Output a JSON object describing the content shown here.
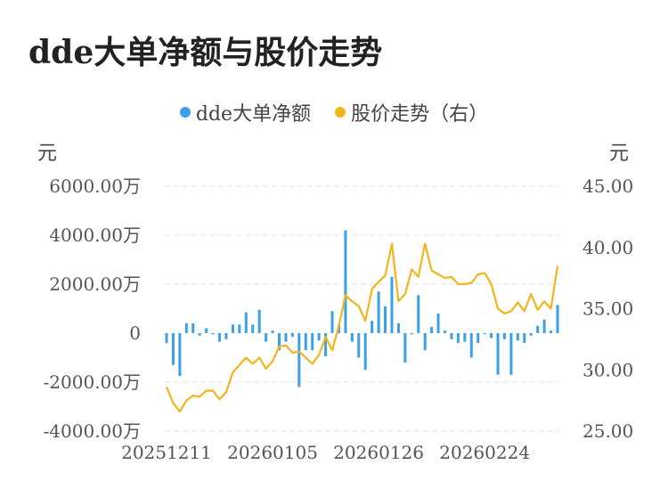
{
  "title": "dde大单净额与股价走势",
  "legend": {
    "series1": "dde大单净额",
    "series2": "股价走势（右）"
  },
  "units": {
    "left": "元",
    "right": "元"
  },
  "colors": {
    "bar": "#3aa0e8",
    "line": "#f4b41a",
    "grid": "#e3e3e3",
    "axis_text": "#555555"
  },
  "chart_data": {
    "type": "bar+line",
    "x_tick_labels": [
      "20251211",
      "20260105",
      "20260126",
      "20260224"
    ],
    "x_tick_indices": [
      0,
      16,
      32,
      48
    ],
    "y_left": {
      "min": -4000,
      "max": 6000,
      "ticks": [
        6000,
        4000,
        2000,
        0,
        -2000,
        -4000
      ],
      "tick_labels": [
        "6000.00万",
        "4000.00万",
        "2000.00万",
        "0",
        "-2000.00万",
        "-4000.00万"
      ]
    },
    "y_right": {
      "min": 25,
      "max": 45,
      "ticks": [
        45,
        40,
        35,
        30,
        25
      ],
      "tick_labels": [
        "45.00",
        "40.00",
        "35.00",
        "30.00",
        "25.00"
      ]
    },
    "series": [
      {
        "name": "dde大单净额",
        "kind": "bar",
        "unit": "万",
        "values": [
          -400,
          -1300,
          -1750,
          400,
          400,
          -100,
          200,
          -50,
          -350,
          -250,
          350,
          350,
          850,
          350,
          950,
          -350,
          100,
          -700,
          -350,
          -150,
          -2200,
          -700,
          -700,
          -300,
          -950,
          900,
          350,
          4200,
          -350,
          -1000,
          -1500,
          500,
          1700,
          1100,
          2300,
          400,
          -1200,
          -50,
          1550,
          -700,
          250,
          800,
          100,
          -250,
          -400,
          -350,
          -1000,
          -400,
          -50,
          -200,
          -1700,
          -250,
          -1700,
          -300,
          -400,
          -100,
          300,
          550,
          100,
          1150
        ]
      },
      {
        "name": "股价走势（右）",
        "kind": "line",
        "values": [
          28.6,
          27.3,
          26.6,
          27.5,
          27.9,
          27.8,
          28.3,
          28.3,
          27.6,
          28.2,
          29.8,
          30.4,
          31.0,
          30.5,
          31.0,
          30.1,
          30.7,
          31.9,
          32.0,
          31.4,
          31.5,
          31.0,
          30.5,
          31.2,
          32.7,
          31.6,
          33.6,
          36.1,
          35.6,
          35.2,
          34.0,
          36.6,
          37.2,
          37.7,
          40.3,
          35.6,
          36.2,
          38.2,
          37.6,
          40.3,
          38.1,
          37.8,
          37.5,
          37.6,
          37.0,
          37.0,
          37.1,
          37.8,
          37.9,
          37.0,
          35.0,
          34.6,
          34.8,
          35.5,
          34.8,
          36.2,
          34.9,
          35.6,
          35.0,
          38.5
        ]
      }
    ],
    "grid": true,
    "legend_position": "top-center"
  }
}
